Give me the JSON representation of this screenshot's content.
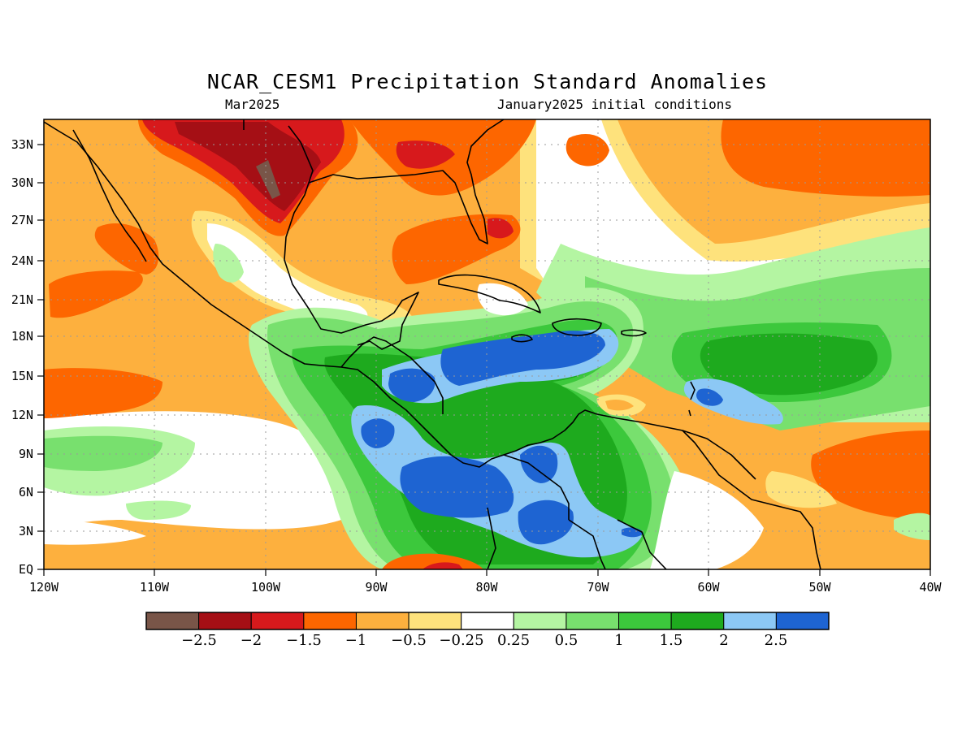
{
  "title": "NCAR_CESM1 Precipitation Standard Anomalies",
  "subtitle_left": "Mar2025",
  "subtitle_right": "January2025 initial conditions",
  "lon_labels": [
    "120W",
    "110W",
    "100W",
    "90W",
    "80W",
    "70W",
    "60W",
    "50W",
    "40W"
  ],
  "lat_labels": [
    "EQ",
    "3N",
    "6N",
    "9N",
    "12N",
    "15N",
    "18N",
    "21N",
    "24N",
    "27N",
    "30N",
    "33N"
  ],
  "colorbar": {
    "colors": [
      "#795548",
      "#a50f15",
      "#d7191c",
      "#fd6600",
      "#fdb03e",
      "#fee27c",
      "#ffffff",
      "#b4f5a2",
      "#78e06e",
      "#3cc83c",
      "#1eaa1e",
      "#8cc8f5",
      "#1e64d2"
    ],
    "labels": [
      "−2.5",
      "−2",
      "−1.5",
      "−1",
      "−0.5",
      "−0.25",
      "0.25",
      "0.5",
      "1",
      "1.5",
      "2",
      "2.5"
    ]
  },
  "colors": {
    "ocean_background": "#fdb03e",
    "coastline": "#000000"
  }
}
